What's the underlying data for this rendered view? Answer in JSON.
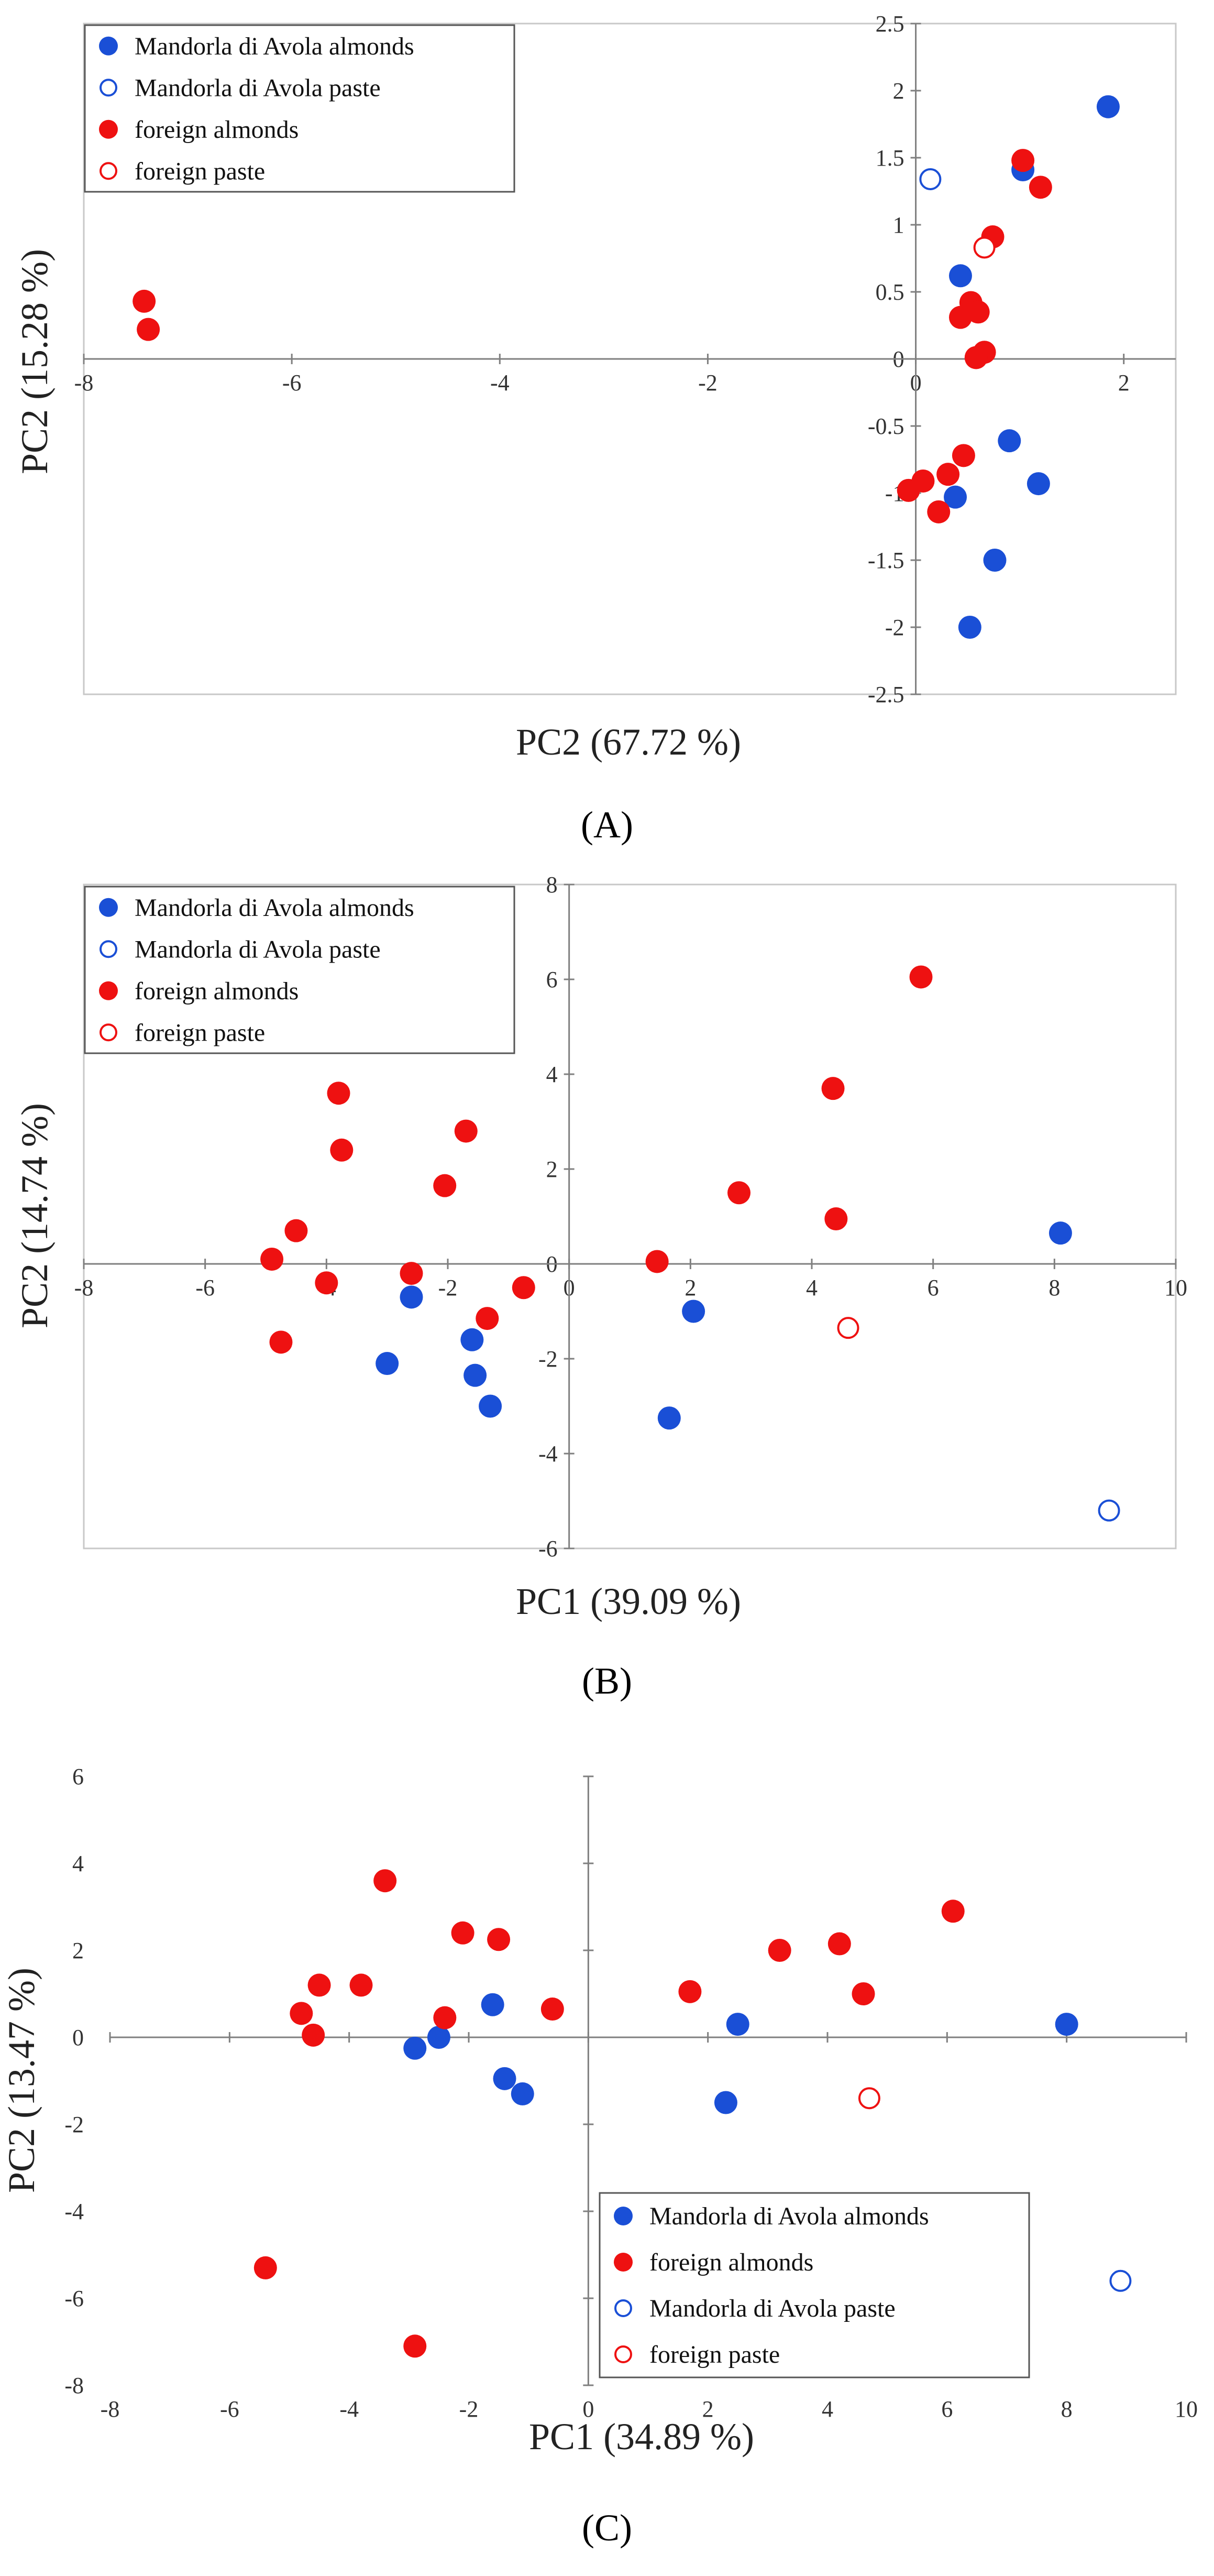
{
  "figure": {
    "colors": {
      "blue": "#1a4fd6",
      "red": "#ee1111",
      "axis": "#7f7f7f",
      "frame": "#c8c8c8"
    }
  },
  "chart_data": [
    {
      "type": "scatter",
      "panel": "A",
      "panel_label": "(A)",
      "xlabel": "PC2 (67.72 %)",
      "ylabel": "PC2 (15.28 %)",
      "xlim": [
        -8,
        2.5
      ],
      "ylim": [
        -2.5,
        2.5
      ],
      "xticks": [
        -8,
        -6,
        -4,
        -2,
        0,
        2
      ],
      "yticks": [
        -2.5,
        -2,
        -1.5,
        -1,
        -0.5,
        0,
        0.5,
        1,
        1.5,
        2,
        2.5
      ],
      "legend_position": "top-left",
      "legend": [
        {
          "label": "Mandorla di Avola almonds",
          "series": "avola_almonds"
        },
        {
          "label": "Mandorla di Avola paste",
          "series": "avola_paste"
        },
        {
          "label": "foreign almonds",
          "series": "foreign_almonds"
        },
        {
          "label": "foreign paste",
          "series": "foreign_paste"
        }
      ],
      "series": [
        {
          "id": "avola_almonds",
          "name": "Mandorla di Avola almonds",
          "marker": "filled",
          "color": "#1a4fd6",
          "points": [
            [
              1.85,
              1.88
            ],
            [
              1.03,
              1.41
            ],
            [
              0.43,
              0.62
            ],
            [
              0.9,
              -0.61
            ],
            [
              1.18,
              -0.93
            ],
            [
              0.38,
              -1.03
            ],
            [
              0.76,
              -1.5
            ],
            [
              0.52,
              -2.0
            ]
          ]
        },
        {
          "id": "avola_paste",
          "name": "Mandorla di Avola paste",
          "marker": "hollow",
          "color": "#1a4fd6",
          "points": [
            [
              0.14,
              1.34
            ]
          ]
        },
        {
          "id": "foreign_almonds",
          "name": "foreign almonds",
          "marker": "filled",
          "color": "#ee1111",
          "points": [
            [
              -7.42,
              0.43
            ],
            [
              -7.38,
              0.22
            ],
            [
              1.03,
              1.48
            ],
            [
              1.2,
              1.28
            ],
            [
              0.74,
              0.91
            ],
            [
              0.53,
              0.42
            ],
            [
              0.6,
              0.35
            ],
            [
              0.43,
              0.31
            ],
            [
              0.66,
              0.05
            ],
            [
              0.58,
              0.01
            ],
            [
              0.46,
              -0.72
            ],
            [
              0.31,
              -0.86
            ],
            [
              0.07,
              -0.91
            ],
            [
              -0.07,
              -0.98
            ],
            [
              0.22,
              -1.14
            ]
          ]
        },
        {
          "id": "foreign_paste",
          "name": "foreign paste",
          "marker": "hollow",
          "color": "#ee1111",
          "points": [
            [
              0.66,
              0.83
            ]
          ]
        }
      ]
    },
    {
      "type": "scatter",
      "panel": "B",
      "panel_label": "(B)",
      "xlabel": "PC1 (39.09 %)",
      "ylabel": "PC2 (14.74 %)",
      "xlim": [
        -8,
        10
      ],
      "ylim": [
        -6,
        8
      ],
      "xticks": [
        -8,
        -6,
        -4,
        -2,
        0,
        2,
        4,
        6,
        8,
        10
      ],
      "yticks": [
        -6,
        -4,
        -2,
        0,
        2,
        4,
        6,
        8
      ],
      "legend_position": "top-left",
      "legend": [
        {
          "label": "Mandorla di Avola almonds",
          "series": "avola_almonds"
        },
        {
          "label": "Mandorla di Avola paste",
          "series": "avola_paste"
        },
        {
          "label": "foreign almonds",
          "series": "foreign_almonds"
        },
        {
          "label": "foreign paste",
          "series": "foreign_paste"
        }
      ],
      "series": [
        {
          "id": "avola_almonds",
          "name": "Mandorla di Avola almonds",
          "marker": "filled",
          "color": "#1a4fd6",
          "points": [
            [
              -2.6,
              -0.7
            ],
            [
              -3.0,
              -2.1
            ],
            [
              -1.6,
              -1.6
            ],
            [
              -1.55,
              -2.35
            ],
            [
              -1.3,
              -3.0
            ],
            [
              2.05,
              -1.0
            ],
            [
              1.65,
              -3.25
            ],
            [
              8.1,
              0.65
            ]
          ]
        },
        {
          "id": "avola_paste",
          "name": "Mandorla di Avola paste",
          "marker": "hollow",
          "color": "#1a4fd6",
          "points": [
            [
              8.9,
              -5.2
            ]
          ]
        },
        {
          "id": "foreign_almonds",
          "name": "foreign almonds",
          "marker": "filled",
          "color": "#ee1111",
          "points": [
            [
              5.8,
              6.05
            ],
            [
              -3.8,
              3.6
            ],
            [
              4.35,
              3.7
            ],
            [
              -1.7,
              2.8
            ],
            [
              -3.75,
              2.4
            ],
            [
              -2.05,
              1.65
            ],
            [
              2.8,
              1.5
            ],
            [
              -4.5,
              0.7
            ],
            [
              4.4,
              0.95
            ],
            [
              -4.9,
              0.1
            ],
            [
              1.45,
              0.05
            ],
            [
              -2.6,
              -0.2
            ],
            [
              -4.0,
              -0.4
            ],
            [
              -0.75,
              -0.5
            ],
            [
              -1.35,
              -1.15
            ],
            [
              -4.75,
              -1.65
            ]
          ]
        },
        {
          "id": "foreign_paste",
          "name": "foreign paste",
          "marker": "hollow",
          "color": "#ee1111",
          "points": [
            [
              4.6,
              -1.35
            ]
          ]
        }
      ]
    },
    {
      "type": "scatter",
      "panel": "C",
      "panel_label": "(C)",
      "xlabel": "PC1 (34.89 %)",
      "ylabel": "PC2 (13.47 %)",
      "xlim": [
        -8,
        10
      ],
      "ylim": [
        -8,
        6
      ],
      "xticks": [
        -8,
        -6,
        -4,
        -2,
        0,
        2,
        4,
        6,
        8,
        10
      ],
      "yticks": [
        -8,
        -6,
        -4,
        -2,
        0,
        2,
        4,
        6
      ],
      "legend_position": "bottom-right",
      "legend": [
        {
          "label": "Mandorla di Avola almonds",
          "series": "avola_almonds"
        },
        {
          "label": "foreign almonds",
          "series": "foreign_almonds"
        },
        {
          "label": "Mandorla di Avola paste",
          "series": "avola_paste"
        },
        {
          "label": "foreign paste",
          "series": "foreign_paste"
        }
      ],
      "series": [
        {
          "id": "avola_almonds",
          "name": "Mandorla di Avola almonds",
          "marker": "filled",
          "color": "#1a4fd6",
          "points": [
            [
              -1.6,
              0.75
            ],
            [
              -2.5,
              0.0
            ],
            [
              -2.9,
              -0.25
            ],
            [
              -1.4,
              -0.95
            ],
            [
              -1.1,
              -1.3
            ],
            [
              2.5,
              0.3
            ],
            [
              2.3,
              -1.5
            ],
            [
              8.0,
              0.3
            ]
          ]
        },
        {
          "id": "avola_paste",
          "name": "Mandorla di Avola paste",
          "marker": "hollow",
          "color": "#1a4fd6",
          "points": [
            [
              8.9,
              -5.6
            ]
          ]
        },
        {
          "id": "foreign_almonds",
          "name": "foreign almonds",
          "marker": "filled",
          "color": "#ee1111",
          "points": [
            [
              -3.4,
              3.6
            ],
            [
              -2.1,
              2.4
            ],
            [
              -1.5,
              2.25
            ],
            [
              -4.5,
              1.2
            ],
            [
              -3.8,
              1.2
            ],
            [
              -4.8,
              0.55
            ],
            [
              -4.6,
              0.05
            ],
            [
              -2.4,
              0.45
            ],
            [
              -0.6,
              0.65
            ],
            [
              1.7,
              1.05
            ],
            [
              3.2,
              2.0
            ],
            [
              4.2,
              2.15
            ],
            [
              4.6,
              1.0
            ],
            [
              6.1,
              2.9
            ],
            [
              -5.4,
              -5.3
            ],
            [
              -2.9,
              -7.1
            ]
          ]
        },
        {
          "id": "foreign_paste",
          "name": "foreign paste",
          "marker": "hollow",
          "color": "#ee1111",
          "points": [
            [
              4.7,
              -1.4
            ]
          ]
        }
      ]
    }
  ]
}
